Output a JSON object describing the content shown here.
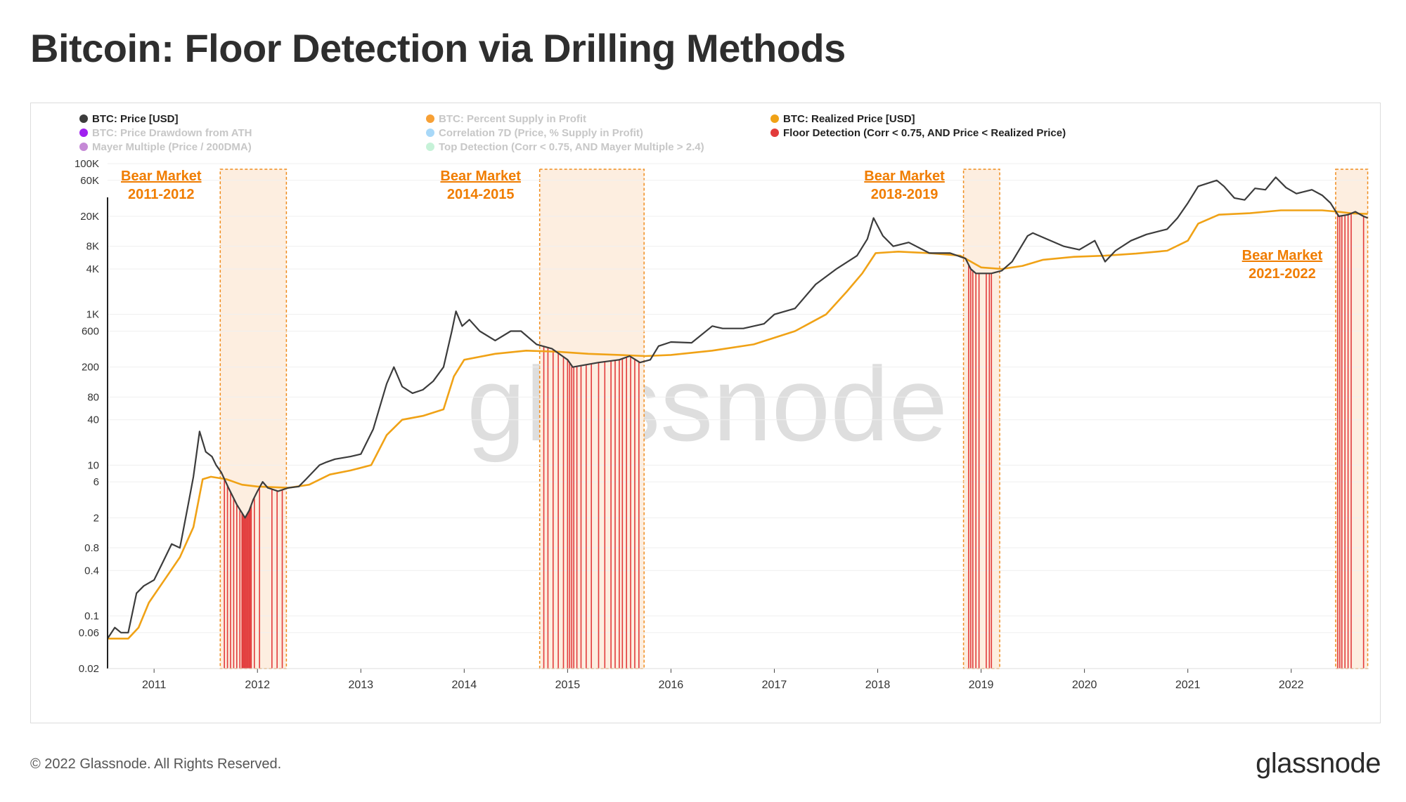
{
  "page": {
    "title": "Bitcoin: Floor Detection via Drilling Methods",
    "footer_copyright": "© 2022 Glassnode. All Rights Reserved.",
    "footer_brand": "glassnode",
    "watermark": "glassnode"
  },
  "colors": {
    "price": "#3c3c3c",
    "realized_price": "#f0a216",
    "floor_detection": "#e23b3b",
    "bear_market_fill": "#fdeee0",
    "bear_market_border": "#f08c1c",
    "bear_market_label": "#f07d00",
    "legend_inactive": "#c7c7c7",
    "grid": "#efefef",
    "watermark": "#dcdcdc"
  },
  "chart_data": {
    "type": "line",
    "title": "Bitcoin: Floor Detection via Drilling Methods",
    "xlabel": "",
    "ylabel": "",
    "y_scale": "log",
    "ylim": [
      0.02,
      100000
    ],
    "xlim": [
      2010.55,
      2022.75
    ],
    "grid": true,
    "legend_position": "top",
    "y_ticks": [
      {
        "label": "100K",
        "value": 100000
      },
      {
        "label": "60K",
        "value": 60000
      },
      {
        "label": "20K",
        "value": 20000
      },
      {
        "label": "8K",
        "value": 8000
      },
      {
        "label": "4K",
        "value": 4000
      },
      {
        "label": "1K",
        "value": 1000
      },
      {
        "label": "600",
        "value": 600
      },
      {
        "label": "200",
        "value": 200
      },
      {
        "label": "80",
        "value": 80
      },
      {
        "label": "40",
        "value": 40
      },
      {
        "label": "10",
        "value": 10
      },
      {
        "label": "6",
        "value": 6
      },
      {
        "label": "2",
        "value": 2
      },
      {
        "label": "0.8",
        "value": 0.8
      },
      {
        "label": "0.4",
        "value": 0.4
      },
      {
        "label": "0.1",
        "value": 0.1
      },
      {
        "label": "0.06",
        "value": 0.06
      },
      {
        "label": "0.02",
        "value": 0.02
      }
    ],
    "x_ticks": [
      {
        "label": "2011",
        "value": 2011
      },
      {
        "label": "2012",
        "value": 2012
      },
      {
        "label": "2013",
        "value": 2013
      },
      {
        "label": "2014",
        "value": 2014
      },
      {
        "label": "2015",
        "value": 2015
      },
      {
        "label": "2016",
        "value": 2016
      },
      {
        "label": "2017",
        "value": 2017
      },
      {
        "label": "2018",
        "value": 2018
      },
      {
        "label": "2019",
        "value": 2019
      },
      {
        "label": "2020",
        "value": 2020
      },
      {
        "label": "2021",
        "value": 2021
      },
      {
        "label": "2022",
        "value": 2022
      }
    ],
    "legend": [
      {
        "name": "BTC: Price [USD]",
        "color": "#3c3c3c",
        "active": true
      },
      {
        "name": "BTC: Percent Supply in Profit",
        "color": "#f7a035",
        "active": false
      },
      {
        "name": "BTC: Realized Price [USD]",
        "color": "#f0a216",
        "active": true
      },
      {
        "name": "BTC: Price Drawdown from ATH",
        "color": "#a020f0",
        "active": false
      },
      {
        "name": "Correlation 7D (Price, % Supply in Profit)",
        "color": "#a8d8f8",
        "active": false
      },
      {
        "name": "Floor Detection (Corr < 0.75, AND Price < Realized Price)",
        "color": "#e23b3b",
        "active": true
      },
      {
        "name": "Mayer Multiple (Price / 200DMA)",
        "color": "#c589d6",
        "active": false
      },
      {
        "name": "Top Detection (Corr < 0.75, AND Mayer Multiple > 2.4)",
        "color": "#c6f2d8",
        "active": false
      }
    ],
    "bear_markets": [
      {
        "label_line1": "Bear Market",
        "label_line2": "2011-2012",
        "start": 2011.64,
        "end": 2012.28,
        "label_side": "left"
      },
      {
        "label_line1": "Bear Market",
        "label_line2": "2014-2015",
        "start": 2014.73,
        "end": 2015.74,
        "label_side": "left"
      },
      {
        "label_line1": "Bear Market",
        "label_line2": "2018-2019",
        "start": 2018.83,
        "end": 2019.18,
        "label_side": "left"
      },
      {
        "label_line1": "Bear Market",
        "label_line2": "2021-2022",
        "start": 2022.43,
        "end": 2022.74,
        "label_side": "below-left"
      }
    ],
    "series": [
      {
        "name": "BTC: Price [USD]",
        "points": [
          [
            2010.55,
            0.05
          ],
          [
            2010.62,
            0.07
          ],
          [
            2010.68,
            0.06
          ],
          [
            2010.75,
            0.06
          ],
          [
            2010.83,
            0.2
          ],
          [
            2010.9,
            0.25
          ],
          [
            2011.0,
            0.3
          ],
          [
            2011.08,
            0.5
          ],
          [
            2011.17,
            0.9
          ],
          [
            2011.25,
            0.8
          ],
          [
            2011.33,
            3.0
          ],
          [
            2011.38,
            7.0
          ],
          [
            2011.44,
            28.0
          ],
          [
            2011.5,
            15.0
          ],
          [
            2011.56,
            13.0
          ],
          [
            2011.6,
            10.0
          ],
          [
            2011.65,
            8.0
          ],
          [
            2011.72,
            5.0
          ],
          [
            2011.8,
            3.0
          ],
          [
            2011.88,
            2.0
          ],
          [
            2011.92,
            2.5
          ],
          [
            2011.96,
            3.5
          ],
          [
            2012.0,
            4.5
          ],
          [
            2012.05,
            6.0
          ],
          [
            2012.1,
            5.0
          ],
          [
            2012.2,
            4.5
          ],
          [
            2012.3,
            5.0
          ],
          [
            2012.4,
            5.2
          ],
          [
            2012.47,
            6.5
          ],
          [
            2012.6,
            10.0
          ],
          [
            2012.67,
            11.0
          ],
          [
            2012.75,
            12.0
          ],
          [
            2012.9,
            13.0
          ],
          [
            2013.0,
            14.0
          ],
          [
            2013.12,
            30.0
          ],
          [
            2013.25,
            120.0
          ],
          [
            2013.32,
            200.0
          ],
          [
            2013.4,
            110.0
          ],
          [
            2013.5,
            90.0
          ],
          [
            2013.6,
            100.0
          ],
          [
            2013.7,
            130.0
          ],
          [
            2013.8,
            200.0
          ],
          [
            2013.88,
            600.0
          ],
          [
            2013.92,
            1100.0
          ],
          [
            2013.98,
            700.0
          ],
          [
            2014.05,
            850.0
          ],
          [
            2014.15,
            600.0
          ],
          [
            2014.3,
            450.0
          ],
          [
            2014.45,
            600.0
          ],
          [
            2014.55,
            600.0
          ],
          [
            2014.7,
            400.0
          ],
          [
            2014.85,
            350.0
          ],
          [
            2015.0,
            250.0
          ],
          [
            2015.05,
            200.0
          ],
          [
            2015.3,
            230.0
          ],
          [
            2015.5,
            250.0
          ],
          [
            2015.6,
            280.0
          ],
          [
            2015.7,
            230.0
          ],
          [
            2015.8,
            250.0
          ],
          [
            2015.88,
            380.0
          ],
          [
            2016.0,
            430.0
          ],
          [
            2016.2,
            420.0
          ],
          [
            2016.4,
            700.0
          ],
          [
            2016.5,
            650.0
          ],
          [
            2016.7,
            650.0
          ],
          [
            2016.9,
            750.0
          ],
          [
            2017.0,
            1000.0
          ],
          [
            2017.2,
            1200.0
          ],
          [
            2017.4,
            2500.0
          ],
          [
            2017.6,
            4000.0
          ],
          [
            2017.8,
            6000.0
          ],
          [
            2017.9,
            10000.0
          ],
          [
            2017.96,
            19000.0
          ],
          [
            2018.05,
            11000.0
          ],
          [
            2018.15,
            8000.0
          ],
          [
            2018.3,
            9000.0
          ],
          [
            2018.5,
            6500.0
          ],
          [
            2018.7,
            6500.0
          ],
          [
            2018.85,
            5500.0
          ],
          [
            2018.9,
            4000.0
          ],
          [
            2018.95,
            3500.0
          ],
          [
            2019.1,
            3500.0
          ],
          [
            2019.2,
            3800.0
          ],
          [
            2019.3,
            5000.0
          ],
          [
            2019.45,
            11000.0
          ],
          [
            2019.5,
            12000.0
          ],
          [
            2019.6,
            10500.0
          ],
          [
            2019.8,
            8000.0
          ],
          [
            2019.95,
            7200.0
          ],
          [
            2020.1,
            9500.0
          ],
          [
            2020.2,
            5000.0
          ],
          [
            2020.3,
            7000.0
          ],
          [
            2020.45,
            9500.0
          ],
          [
            2020.6,
            11500.0
          ],
          [
            2020.8,
            13500.0
          ],
          [
            2020.9,
            19000.0
          ],
          [
            2021.0,
            30000.0
          ],
          [
            2021.1,
            50000.0
          ],
          [
            2021.28,
            60000.0
          ],
          [
            2021.35,
            50000.0
          ],
          [
            2021.45,
            35000.0
          ],
          [
            2021.55,
            33000.0
          ],
          [
            2021.65,
            47000.0
          ],
          [
            2021.75,
            45000.0
          ],
          [
            2021.85,
            66000.0
          ],
          [
            2021.95,
            48000.0
          ],
          [
            2022.05,
            40000.0
          ],
          [
            2022.2,
            45000.0
          ],
          [
            2022.3,
            38000.0
          ],
          [
            2022.38,
            30000.0
          ],
          [
            2022.46,
            20000.0
          ],
          [
            2022.55,
            21000.0
          ],
          [
            2022.62,
            23000.0
          ],
          [
            2022.7,
            20000.0
          ],
          [
            2022.74,
            19000.0
          ]
        ]
      },
      {
        "name": "BTC: Realized Price [USD]",
        "points": [
          [
            2010.55,
            0.05
          ],
          [
            2010.75,
            0.05
          ],
          [
            2010.85,
            0.07
          ],
          [
            2010.95,
            0.15
          ],
          [
            2011.1,
            0.3
          ],
          [
            2011.25,
            0.6
          ],
          [
            2011.38,
            1.5
          ],
          [
            2011.47,
            6.5
          ],
          [
            2011.55,
            7.0
          ],
          [
            2011.7,
            6.5
          ],
          [
            2011.85,
            5.5
          ],
          [
            2012.0,
            5.2
          ],
          [
            2012.3,
            5.0
          ],
          [
            2012.5,
            5.5
          ],
          [
            2012.7,
            7.5
          ],
          [
            2012.9,
            8.5
          ],
          [
            2013.1,
            10.0
          ],
          [
            2013.25,
            25.0
          ],
          [
            2013.4,
            40.0
          ],
          [
            2013.6,
            45.0
          ],
          [
            2013.8,
            55.0
          ],
          [
            2013.9,
            150.0
          ],
          [
            2014.0,
            250.0
          ],
          [
            2014.3,
            300.0
          ],
          [
            2014.6,
            330.0
          ],
          [
            2014.9,
            320.0
          ],
          [
            2015.2,
            300.0
          ],
          [
            2015.5,
            290.0
          ],
          [
            2015.75,
            280.0
          ],
          [
            2016.0,
            290.0
          ],
          [
            2016.4,
            330.0
          ],
          [
            2016.8,
            400.0
          ],
          [
            2017.2,
            600.0
          ],
          [
            2017.5,
            1000.0
          ],
          [
            2017.7,
            2000.0
          ],
          [
            2017.85,
            3500.0
          ],
          [
            2017.98,
            6500.0
          ],
          [
            2018.2,
            6800.0
          ],
          [
            2018.5,
            6500.0
          ],
          [
            2018.8,
            6000.0
          ],
          [
            2019.0,
            4200.0
          ],
          [
            2019.2,
            4000.0
          ],
          [
            2019.4,
            4400.0
          ],
          [
            2019.6,
            5300.0
          ],
          [
            2019.9,
            5800.0
          ],
          [
            2020.2,
            6000.0
          ],
          [
            2020.5,
            6400.0
          ],
          [
            2020.8,
            7000.0
          ],
          [
            2021.0,
            9500.0
          ],
          [
            2021.1,
            16000.0
          ],
          [
            2021.3,
            21000.0
          ],
          [
            2021.6,
            22000.0
          ],
          [
            2021.9,
            24000.0
          ],
          [
            2022.1,
            24000.0
          ],
          [
            2022.3,
            24000.0
          ],
          [
            2022.45,
            23000.0
          ],
          [
            2022.6,
            21800.0
          ],
          [
            2022.74,
            21500.0
          ]
        ]
      }
    ],
    "floor_detection_dates": [
      2011.68,
      2011.71,
      2011.74,
      2011.77,
      2011.8,
      2011.83,
      2011.85,
      2011.86,
      2011.87,
      2011.88,
      2011.89,
      2011.9,
      2011.91,
      2011.92,
      2011.93,
      2011.94,
      2011.97,
      2012.02,
      2012.14,
      2012.19,
      2012.24,
      2014.77,
      2014.81,
      2014.86,
      2014.91,
      2014.96,
      2015.0,
      2015.02,
      2015.04,
      2015.06,
      2015.09,
      2015.13,
      2015.18,
      2015.23,
      2015.3,
      2015.36,
      2015.42,
      2015.46,
      2015.5,
      2015.53,
      2015.57,
      2015.61,
      2015.65,
      2015.69,
      2018.88,
      2018.9,
      2018.92,
      2018.95,
      2018.98,
      2019.05,
      2019.08,
      2019.1,
      2022.45,
      2022.47,
      2022.49,
      2022.52,
      2022.55,
      2022.58,
      2022.7
    ]
  }
}
